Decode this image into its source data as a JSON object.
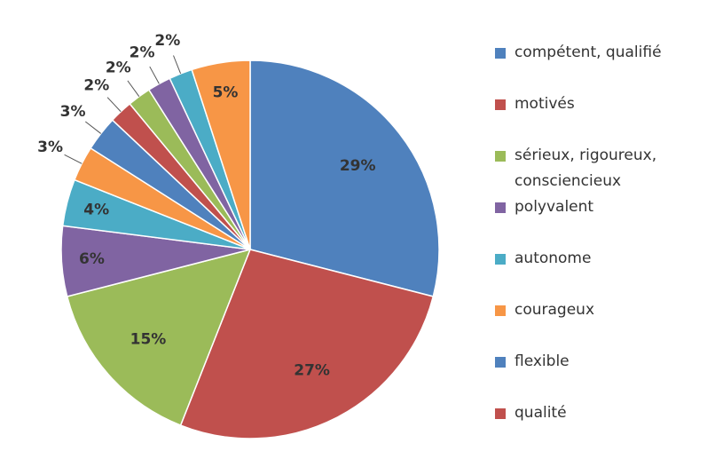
{
  "chart_data": {
    "type": "pie",
    "categories": [
      "compétent, qualifié",
      "motivés",
      "sérieux, rigoureux, consciencieux",
      "polyvalent",
      "autonome",
      "courageux",
      "flexible",
      "qualité",
      null,
      null,
      null,
      null
    ],
    "values": [
      29,
      27,
      15,
      6,
      4,
      3,
      3,
      2,
      2,
      2,
      2,
      5
    ],
    "value_labels": [
      "29%",
      "27%",
      "15%",
      "6%",
      "4%",
      "3%",
      "3%",
      "2%",
      "2%",
      "2%",
      "2%",
      "5%"
    ],
    "colors": [
      "#4f81bd",
      "#c0504d",
      "#9bbb59",
      "#8064a2",
      "#4bacc6",
      "#f79646",
      "#4f81bd",
      "#c0504d",
      "#9bbb59",
      "#8064a2",
      "#4bacc6",
      "#f79646"
    ],
    "legend": "right"
  }
}
